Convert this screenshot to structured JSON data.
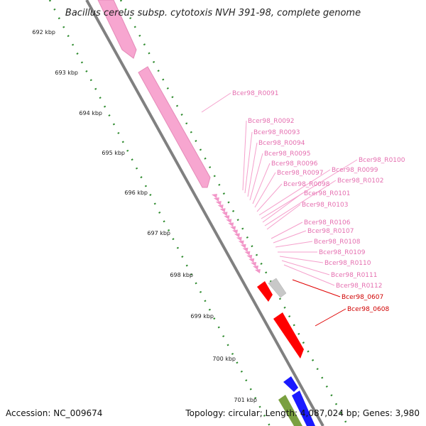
{
  "title": "Bacillus cereus subsp. cytotoxis NVH 391-98, complete genome",
  "footer": {
    "accession": "Accession: NC_009674",
    "topology": "Topology: circular; Length: 4,087,024 bp; Genes: 3,980"
  },
  "kbp_labels": [
    "692 kbp",
    "693 kbp",
    "694 kbp",
    "695 kbp",
    "696 kbp",
    "697 kbp",
    "698 kbp",
    "699 kbp",
    "700 kbp",
    "701 kbp"
  ],
  "gene_labels_pink": [
    "Bcer98_R0091",
    "Bcer98_R0092",
    "Bcer98_R0093",
    "Bcer98_R0094",
    "Bcer98_R0095",
    "Bcer98_R0096",
    "Bcer98_R0097",
    "Bcer98_R0098",
    "Bcer98_R0099",
    "Bcer98_R0100",
    "Bcer98_R0101",
    "Bcer98_R0102",
    "Bcer98_R0103",
    "Bcer98_R0106",
    "Bcer98_R0107",
    "Bcer98_R0108",
    "Bcer98_R0109",
    "Bcer98_R0110",
    "Bcer98_R0111",
    "Bcer98_R0112"
  ],
  "gene_labels_red": [
    "Bcer98_0607",
    "Bcer98_0608"
  ],
  "colors": {
    "rRNA": "#f7a6d0",
    "tRNA": "#f296c8",
    "cds_red": "#ff0000",
    "cds_blue": "#1a1aff",
    "cds_olive": "#7aa040",
    "pseudo_gray": "#c8c8c8",
    "backbone": "#808080",
    "gc_tick": "#2e8b2e"
  }
}
